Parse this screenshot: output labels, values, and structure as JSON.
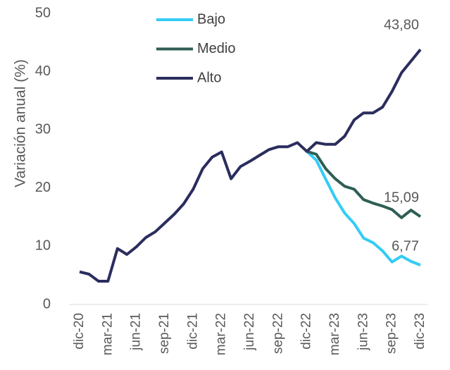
{
  "chart_data": {
    "type": "line",
    "y_label": "Variación anual (%)",
    "categories": [
      "dic-20",
      null,
      null,
      "mar-21",
      null,
      null,
      "jun-21",
      null,
      null,
      "sep-21",
      null,
      null,
      "dic-21",
      null,
      null,
      "mar-22",
      null,
      null,
      "jun-22",
      null,
      null,
      "sep-22",
      null,
      null,
      "dic-22",
      null,
      null,
      "mar-23",
      null,
      null,
      "jun-23",
      null,
      null,
      "sep-23",
      null,
      null,
      "dic-23"
    ],
    "series": [
      {
        "name": "Bajo",
        "color": "#33ccf5",
        "values": [
          null,
          null,
          null,
          null,
          null,
          null,
          null,
          null,
          null,
          null,
          null,
          null,
          null,
          null,
          null,
          null,
          null,
          null,
          null,
          null,
          null,
          null,
          null,
          null,
          26.3,
          24.8,
          21.5,
          18.3,
          15.7,
          13.9,
          11.4,
          10.6,
          9.2,
          7.3,
          8.3,
          7.4,
          6.77
        ],
        "value_labels": [
          null,
          null,
          null,
          null,
          null,
          null,
          null,
          null,
          null,
          null,
          null,
          null,
          null,
          null,
          null,
          null,
          null,
          null,
          null,
          null,
          null,
          null,
          null,
          null,
          null,
          null,
          null,
          null,
          null,
          null,
          null,
          null,
          null,
          null,
          null,
          null,
          "6,77"
        ]
      },
      {
        "name": "Medio",
        "color": "#2e5e55",
        "values": [
          null,
          null,
          null,
          null,
          null,
          null,
          null,
          null,
          null,
          null,
          null,
          null,
          null,
          null,
          null,
          null,
          null,
          null,
          null,
          null,
          null,
          null,
          null,
          null,
          26.3,
          25.8,
          23.3,
          21.6,
          20.3,
          19.8,
          18.0,
          17.4,
          16.9,
          16.3,
          14.9,
          16.2,
          15.09
        ],
        "value_labels": [
          null,
          null,
          null,
          null,
          null,
          null,
          null,
          null,
          null,
          null,
          null,
          null,
          null,
          null,
          null,
          null,
          null,
          null,
          null,
          null,
          null,
          null,
          null,
          null,
          null,
          null,
          null,
          null,
          null,
          null,
          null,
          null,
          null,
          null,
          null,
          null,
          "15,09"
        ]
      },
      {
        "name": "Alto",
        "color": "#2b2d5e",
        "values": [
          5.6,
          5.2,
          4.0,
          4.0,
          9.6,
          8.6,
          9.9,
          11.5,
          12.5,
          14.0,
          15.5,
          17.3,
          19.8,
          23.3,
          25.3,
          26.2,
          21.6,
          23.7,
          24.6,
          25.6,
          26.6,
          27.1,
          27.1,
          27.8,
          26.3,
          27.8,
          27.5,
          27.5,
          28.9,
          31.7,
          32.9,
          32.9,
          33.9,
          36.6,
          39.8,
          41.8,
          43.8
        ],
        "value_labels": [
          null,
          null,
          null,
          null,
          null,
          null,
          null,
          null,
          null,
          null,
          null,
          null,
          null,
          null,
          null,
          null,
          null,
          null,
          null,
          null,
          null,
          null,
          null,
          null,
          null,
          null,
          null,
          null,
          null,
          null,
          null,
          null,
          null,
          null,
          null,
          null,
          "43,80"
        ]
      }
    ],
    "ylim": [
      0,
      50
    ],
    "yticks": [
      0,
      10,
      20,
      30,
      40,
      50
    ],
    "legend": "top-left"
  }
}
